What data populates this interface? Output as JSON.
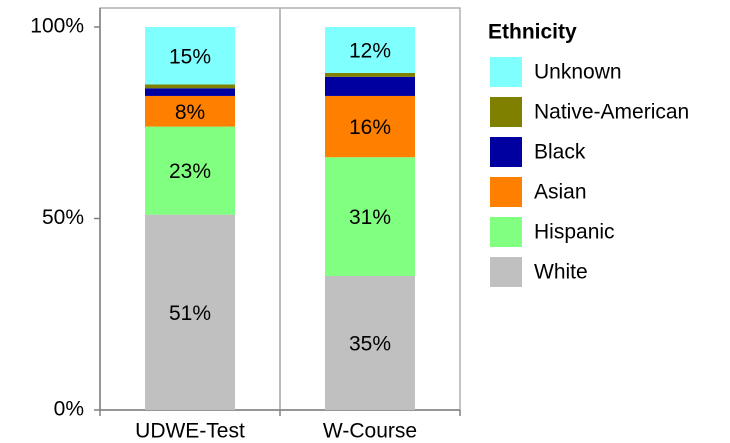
{
  "chart_data": {
    "type": "stacked_bar",
    "categories": [
      "UDWE-Test",
      "W-Course"
    ],
    "ylim": [
      0,
      100
    ],
    "yticks": [
      {
        "value": 0,
        "label": "0%"
      },
      {
        "value": 50,
        "label": "50%"
      },
      {
        "value": 100,
        "label": "100%"
      }
    ],
    "legend_title": "Ethnicity",
    "legend_position": "right",
    "series": [
      {
        "name": "White",
        "color": "#c0c0c0",
        "values": [
          51,
          35
        ],
        "value_labels": [
          "51%",
          "35%"
        ]
      },
      {
        "name": "Hispanic",
        "color": "#80ff80",
        "values": [
          23,
          31
        ],
        "value_labels": [
          "23%",
          "31%"
        ]
      },
      {
        "name": "Asian",
        "color": "#ff8000",
        "values": [
          8,
          16
        ],
        "value_labels": [
          "8%",
          "16%"
        ]
      },
      {
        "name": "Black",
        "color": "#0000a0",
        "values": [
          2,
          5
        ],
        "value_labels": [
          null,
          null
        ]
      },
      {
        "name": "Native-American",
        "color": "#808000",
        "values": [
          1,
          1
        ],
        "value_labels": [
          null,
          null
        ]
      },
      {
        "name": "Unknown",
        "color": "#80ffff",
        "values": [
          15,
          12
        ],
        "value_labels": [
          "15%",
          "12%"
        ]
      }
    ]
  }
}
